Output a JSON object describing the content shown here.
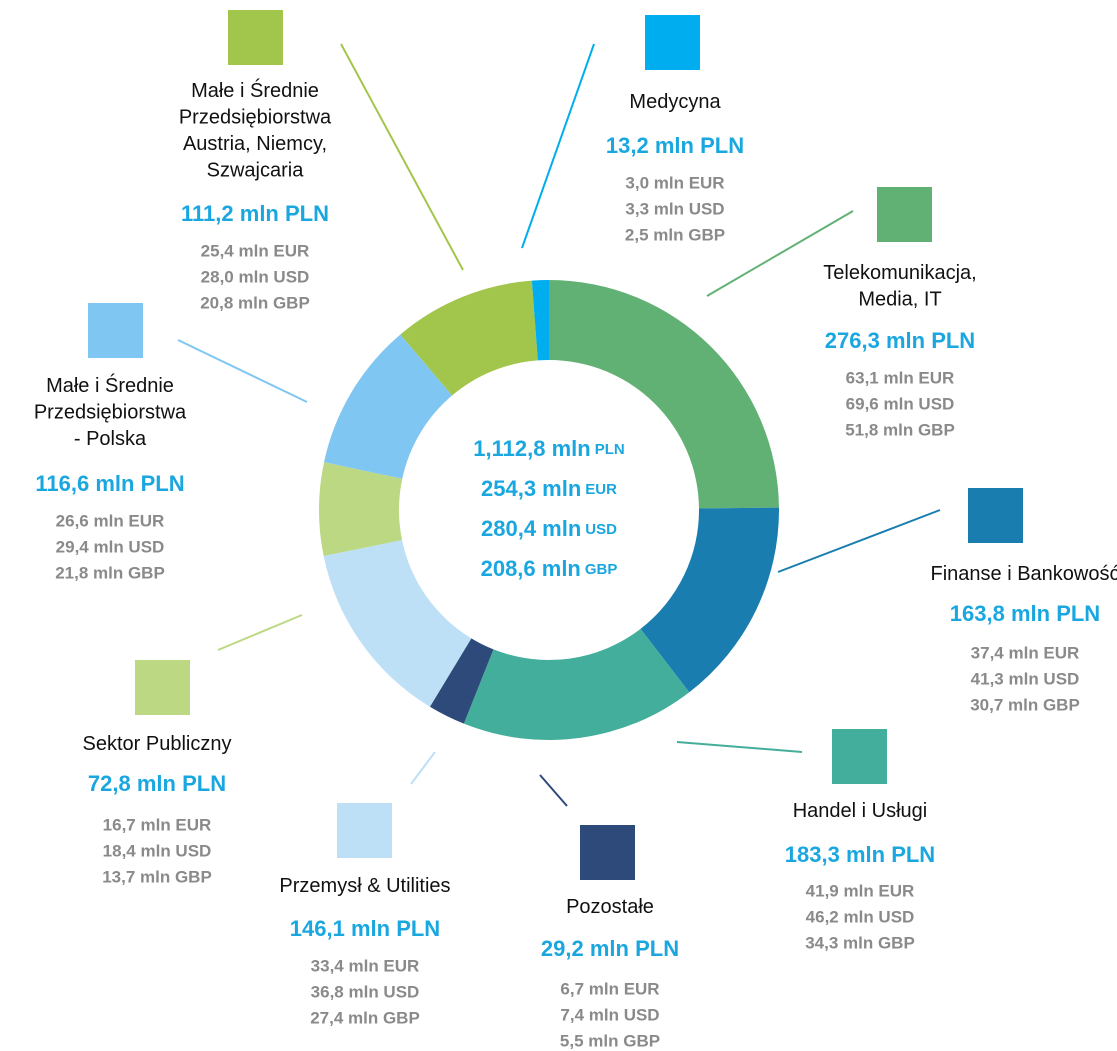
{
  "chart_data": {
    "type": "donut",
    "categories": [
      "Telekomunikacja,\nMedia, IT",
      "Finanse i Bankowość",
      "Handel i Usługi",
      "Pozostałe",
      "Przemysł & Utilities",
      "Sektor Publiczny",
      "Małe i Średnie\nPrzedsiębiorstwa\n- Polska",
      "Małe i Średnie\nPrzedsiębiorstwa\nAustria, Niemcy,\nSzwajcaria",
      "Medycyna"
    ],
    "values": [
      276.3,
      163.8,
      183.3,
      29.2,
      146.1,
      72.8,
      116.6,
      111.2,
      13.2
    ],
    "value_labels": [
      "276,3 mln PLN",
      "163,8 mln PLN",
      "183,3 mln PLN",
      "29,2 mln PLN",
      "146,1 mln PLN",
      "72,8 mln PLN",
      "116,6 mln PLN",
      "111,2 mln PLN",
      "13,2 mln PLN"
    ],
    "colors": [
      "#62b174",
      "#1a7db0",
      "#43ae9b",
      "#2e4a7a",
      "#bde0f6",
      "#bdd882",
      "#80c6f2",
      "#a2c64b",
      "#00aeef"
    ],
    "details": [
      [
        "63,1 mln EUR",
        "69,6 mln USD",
        "51,8 mln GBP"
      ],
      [
        "37,4 mln EUR",
        "41,3 mln USD",
        "30,7 mln GBP"
      ],
      [
        "41,9 mln EUR",
        "46,2 mln USD",
        "34,3 mln GBP"
      ],
      [
        "6,7 mln EUR",
        "7,4 mln USD",
        "5,5 mln GBP"
      ],
      [
        "33,4 mln EUR",
        "36,8 mln USD",
        "27,4 mln GBP"
      ],
      [
        "16,7 mln EUR",
        "18,4 mln USD",
        "13,7 mln GBP"
      ],
      [
        "26,6 mln EUR",
        "29,4 mln USD",
        "21,8 mln GBP"
      ],
      [
        "25,4 mln EUR",
        "28,0 mln USD",
        "20,8 mln GBP"
      ],
      [
        "3,0 mln EUR",
        "3,3 mln USD",
        "2,5 mln GBP"
      ]
    ],
    "center": [
      {
        "amount": "1,112,8 mln",
        "unit": "PLN"
      },
      {
        "amount": "254,3 mln",
        "unit": "EUR"
      },
      {
        "amount": "280,4 mln",
        "unit": "USD"
      },
      {
        "amount": "208,6 mln",
        "unit": "GBP"
      }
    ]
  }
}
